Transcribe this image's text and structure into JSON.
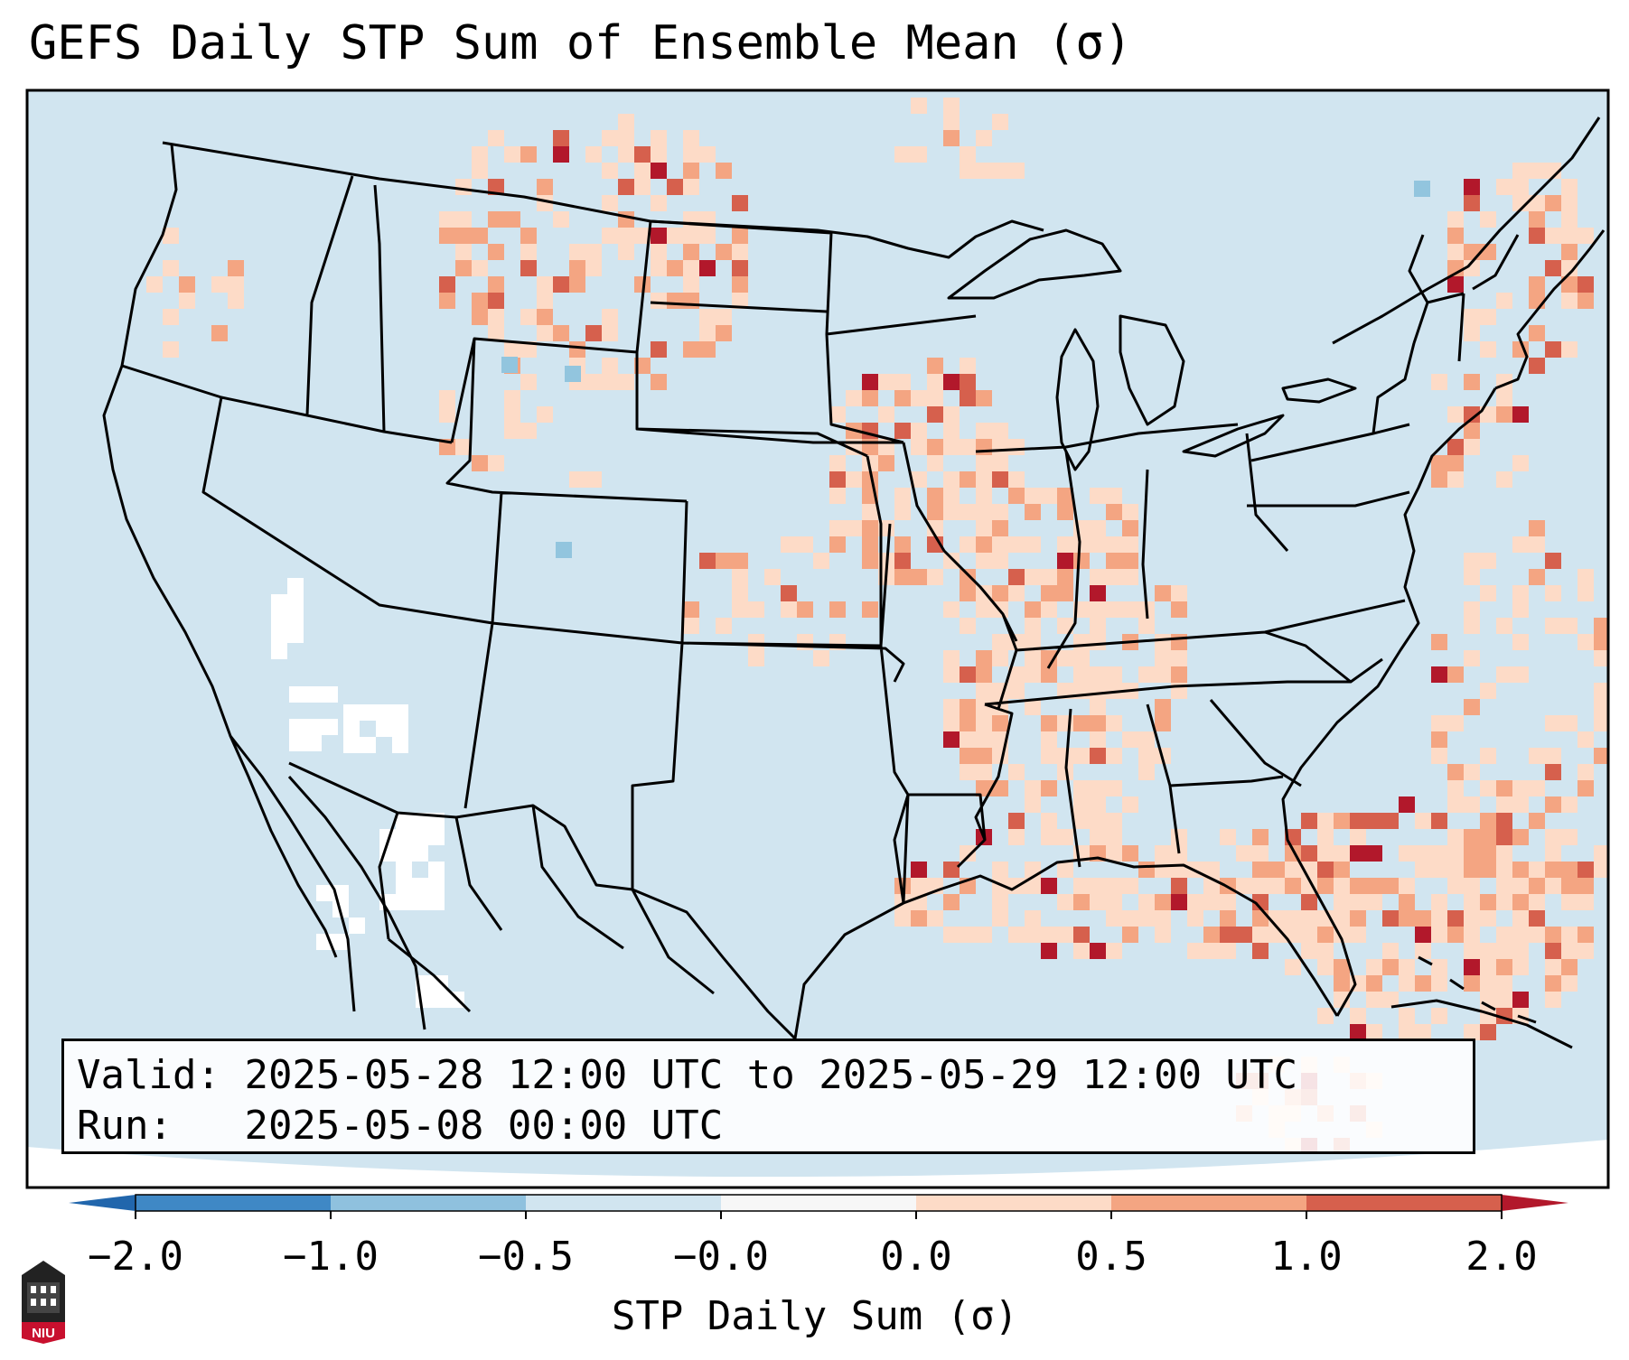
{
  "title": "GEFS Daily STP Sum of Ensemble Mean (σ)",
  "info": {
    "valid_label": "Valid:",
    "valid_value": "2025-05-28 12:00 UTC to 2025-05-29 12:00 UTC",
    "run_label": "Run:",
    "run_value": "2025-05-08 00:00 UTC"
  },
  "colorbar": {
    "label": "STP Daily Sum (σ)",
    "ticks": [
      "−2.0",
      "−1.0",
      "−0.5",
      "−0.0",
      "0.0",
      "0.5",
      "1.0",
      "2.0"
    ],
    "colors": [
      "#3f88c5",
      "#8fc1de",
      "#d1e5f0",
      "#f7f7f7",
      "#fddbc7",
      "#f4a582",
      "#d6604d"
    ],
    "under_color": "#2166ac",
    "over_color": "#b2182b"
  },
  "map": {
    "background_color": "#d1e5f0",
    "border_color": "#000000"
  },
  "logo": {
    "text": "NIU",
    "icon": "niu-castle-logo-icon"
  }
}
